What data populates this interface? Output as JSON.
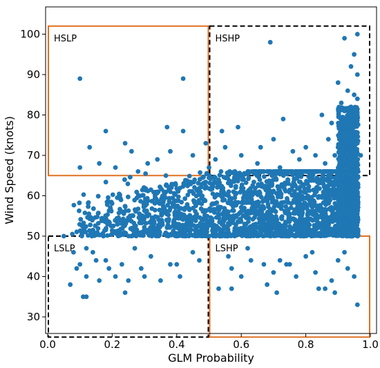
{
  "chart_data": {
    "type": "scatter",
    "xlabel": "GLM Probability",
    "ylabel": "Wind Speed (knots)",
    "xlim": [
      0.0,
      1.0
    ],
    "ylim": [
      25,
      104
    ],
    "xticks": [
      "0.0",
      "0.2",
      "0.4",
      "0.6",
      "0.8",
      "1.0"
    ],
    "yticks": [
      "30",
      "40",
      "50",
      "60",
      "70",
      "80",
      "90",
      "100"
    ],
    "grid": false,
    "point_color": "#1f77b4",
    "regions": [
      {
        "label": "HSLP",
        "x": [
          0.0,
          0.5
        ],
        "y": [
          65,
          102
        ],
        "color": "#e07020",
        "style": "solid"
      },
      {
        "label": "HSHP",
        "x": [
          0.5,
          1.0
        ],
        "y": [
          65,
          102
        ],
        "color": "#000000",
        "style": "dashed"
      },
      {
        "label": "LSLP",
        "x": [
          0.0,
          0.5
        ],
        "y": [
          25,
          50
        ],
        "color": "#000000",
        "style": "dashed"
      },
      {
        "label": "LSHP",
        "x": [
          0.5,
          1.0
        ],
        "y": [
          25,
          50
        ],
        "color": "#e07020",
        "style": "solid"
      }
    ],
    "points": [
      [
        0.1,
        89
      ],
      [
        0.42,
        89
      ],
      [
        0.69,
        98
      ],
      [
        0.92,
        99
      ],
      [
        0.96,
        100
      ],
      [
        0.95,
        95
      ],
      [
        0.94,
        92
      ],
      [
        0.96,
        90
      ],
      [
        0.9,
        88
      ],
      [
        0.93,
        86
      ],
      [
        0.95,
        85
      ],
      [
        0.91,
        83
      ],
      [
        0.96,
        84
      ],
      [
        0.94,
        82
      ],
      [
        0.92,
        81
      ],
      [
        0.96,
        80
      ],
      [
        0.85,
        80
      ],
      [
        0.88,
        78
      ],
      [
        0.93,
        79
      ],
      [
        0.95,
        78
      ],
      [
        0.73,
        79
      ],
      [
        0.18,
        76
      ],
      [
        0.37,
        77
      ],
      [
        0.42,
        76
      ],
      [
        0.54,
        76
      ],
      [
        0.59,
        77
      ],
      [
        0.13,
        72
      ],
      [
        0.24,
        73
      ],
      [
        0.26,
        71
      ],
      [
        0.49,
        73
      ],
      [
        0.38,
        71
      ],
      [
        0.45,
        70
      ],
      [
        0.34,
        69
      ],
      [
        0.16,
        68
      ],
      [
        0.21,
        67
      ],
      [
        0.28,
        66
      ],
      [
        0.31,
        68
      ],
      [
        0.1,
        67
      ],
      [
        0.55,
        72
      ],
      [
        0.6,
        70
      ],
      [
        0.66,
        72
      ],
      [
        0.7,
        74
      ],
      [
        0.76,
        71
      ],
      [
        0.8,
        72
      ],
      [
        0.83,
        70
      ],
      [
        0.87,
        74
      ],
      [
        0.9,
        72
      ],
      [
        0.94,
        75
      ],
      [
        0.96,
        73
      ],
      [
        0.89,
        70
      ],
      [
        0.86,
        68
      ],
      [
        0.92,
        69
      ],
      [
        0.95,
        71
      ],
      [
        0.78,
        69
      ],
      [
        0.72,
        67
      ],
      [
        0.65,
        68
      ],
      [
        0.58,
        66
      ],
      [
        0.52,
        69
      ],
      [
        0.5,
        67
      ],
      [
        0.97,
        70
      ],
      [
        0.05,
        50
      ],
      [
        0.08,
        46
      ],
      [
        0.1,
        43
      ],
      [
        0.12,
        40
      ],
      [
        0.07,
        38
      ],
      [
        0.11,
        35
      ],
      [
        0.12,
        35
      ],
      [
        0.09,
        42
      ],
      [
        0.14,
        46
      ],
      [
        0.18,
        44
      ],
      [
        0.21,
        40
      ],
      [
        0.23,
        43
      ],
      [
        0.25,
        39
      ],
      [
        0.24,
        36
      ],
      [
        0.29,
        42
      ],
      [
        0.32,
        45
      ],
      [
        0.38,
        43
      ],
      [
        0.41,
        40
      ],
      [
        0.45,
        46
      ],
      [
        0.35,
        39
      ],
      [
        0.16,
        39
      ],
      [
        0.19,
        42
      ],
      [
        0.27,
        47
      ],
      [
        0.15,
        44
      ],
      [
        0.3,
        40
      ],
      [
        0.47,
        44
      ],
      [
        0.53,
        37
      ],
      [
        0.57,
        42
      ],
      [
        0.56,
        45
      ],
      [
        0.6,
        40
      ],
      [
        0.63,
        44
      ],
      [
        0.57,
        37
      ],
      [
        0.68,
        38
      ],
      [
        0.7,
        41
      ],
      [
        0.72,
        44
      ],
      [
        0.71,
        36
      ],
      [
        0.75,
        43
      ],
      [
        0.77,
        40
      ],
      [
        0.8,
        45
      ],
      [
        0.83,
        41
      ],
      [
        0.84,
        37
      ],
      [
        0.86,
        37
      ],
      [
        0.89,
        36
      ],
      [
        0.9,
        44
      ],
      [
        0.92,
        46
      ],
      [
        0.93,
        42
      ],
      [
        0.95,
        40
      ],
      [
        0.96,
        33
      ],
      [
        0.88,
        39
      ],
      [
        0.74,
        43
      ],
      [
        0.62,
        47
      ],
      [
        0.82,
        46
      ],
      [
        0.67,
        43
      ],
      [
        0.4,
        43
      ],
      [
        0.12,
        47
      ]
    ]
  }
}
